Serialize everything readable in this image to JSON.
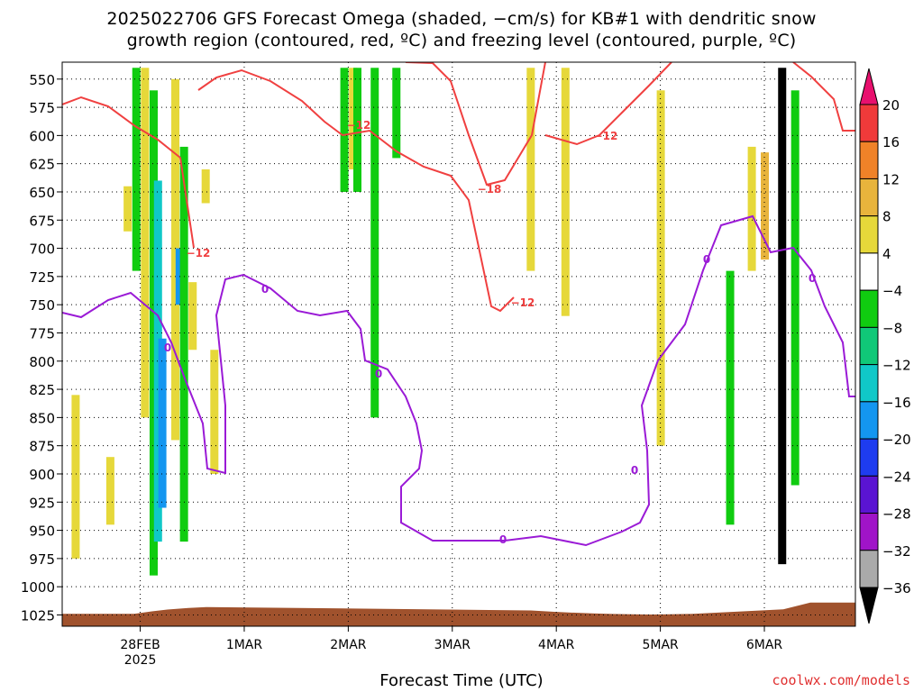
{
  "header": {
    "title_line1": "2025022706 GFS Forecast Omega (shaded, −cm/s) for KB#1 with dendritic snow",
    "title_line2": "growth region (contoured, red, ºC) and freezing level (contoured, purple, ºC)"
  },
  "footer": {
    "xlabel": "Forecast Time (UTC)",
    "credit": "coolwx.com/models"
  },
  "chart_data": {
    "type": "time-height cross section",
    "y_axis": {
      "quantity": "pressure (hPa)",
      "inverted": true,
      "range": [
        1035,
        535
      ],
      "tick_labels": [
        "550",
        "575",
        "600",
        "625",
        "650",
        "675",
        "700",
        "725",
        "750",
        "775",
        "800",
        "825",
        "850",
        "875",
        "900",
        "925",
        "950",
        "975",
        "1000",
        "1025"
      ]
    },
    "x_axis": {
      "range": [
        "2025-02-27T06:00Z",
        "2025-03-06T21:00Z"
      ],
      "ticks": [
        {
          "t": "2025-02-28T00:00Z",
          "label": "28FEB",
          "sublabel": "2025"
        },
        {
          "t": "2025-03-01T00:00Z",
          "label": "1MAR"
        },
        {
          "t": "2025-03-02T00:00Z",
          "label": "2MAR"
        },
        {
          "t": "2025-03-03T00:00Z",
          "label": "3MAR"
        },
        {
          "t": "2025-03-04T00:00Z",
          "label": "4MAR"
        },
        {
          "t": "2025-03-05T00:00Z",
          "label": "5MAR"
        },
        {
          "t": "2025-03-06T00:00Z",
          "label": "6MAR"
        }
      ]
    },
    "grid": "dotted",
    "colorbar": {
      "units": "−cm/s",
      "labels": [
        "20",
        "16",
        "12",
        "8",
        "4",
        "−4",
        "−8",
        "−12",
        "−16",
        "−20",
        "−24",
        "−28",
        "−32",
        "−36"
      ],
      "bins": [
        {
          "range": [
            20,
            null
          ],
          "color": "#e8106e"
        },
        {
          "range": [
            16,
            20
          ],
          "color": "#f03a3a"
        },
        {
          "range": [
            12,
            16
          ],
          "color": "#f08228"
        },
        {
          "range": [
            8,
            12
          ],
          "color": "#e8b43c"
        },
        {
          "range": [
            4,
            8
          ],
          "color": "#e6d83a"
        },
        {
          "range": [
            -4,
            4
          ],
          "color": "#ffffff"
        },
        {
          "range": [
            -8,
            -4
          ],
          "color": "#10cc10"
        },
        {
          "range": [
            -12,
            -8
          ],
          "color": "#10c878"
        },
        {
          "range": [
            -16,
            -12
          ],
          "color": "#10c8c8"
        },
        {
          "range": [
            -20,
            -16
          ],
          "color": "#1496f0"
        },
        {
          "range": [
            -24,
            -20
          ],
          "color": "#1e3cf0"
        },
        {
          "range": [
            -28,
            -24
          ],
          "color": "#5a14d2"
        },
        {
          "range": [
            -32,
            -28
          ],
          "color": "#a014c8"
        },
        {
          "range": [
            -36,
            -32
          ],
          "color": "#aaaaaa"
        },
        {
          "range": [
            null,
            -36
          ],
          "color": "#000000"
        }
      ]
    },
    "contours": [
      {
        "level": -12,
        "color": "#f04040",
        "labels": [
          "−12",
          "−12",
          "−12",
          "−12"
        ]
      },
      {
        "level": -18,
        "color": "#f04040",
        "labels": [
          "−18"
        ]
      },
      {
        "level": 0,
        "color": "#9a1ad6",
        "labels": [
          "0",
          "0",
          "0",
          "0",
          "0",
          "0",
          "0"
        ]
      }
    ],
    "terrain": {
      "color": "#a0522d",
      "surface_pressure_range_hPa": [
        1024,
        1014
      ]
    },
    "omega_shading": [
      {
        "time": "2025-02-27T09:00Z",
        "p_top": 830,
        "p_bottom": 975,
        "value": 5
      },
      {
        "time": "2025-02-27T17:00Z",
        "p_top": 885,
        "p_bottom": 945,
        "value": 5
      },
      {
        "time": "2025-02-27T21:00Z",
        "p_top": 645,
        "p_bottom": 685,
        "value": 5
      },
      {
        "time": "2025-02-27T23:00Z",
        "p_top": 540,
        "p_bottom": 720,
        "value": -6
      },
      {
        "time": "2025-02-28T01:00Z",
        "p_top": 540,
        "p_bottom": 850,
        "value": 5
      },
      {
        "time": "2025-02-28T03:00Z",
        "p_top": 560,
        "p_bottom": 990,
        "value": -6
      },
      {
        "time": "2025-02-28T04:00Z",
        "p_top": 640,
        "p_bottom": 960,
        "value": -14
      },
      {
        "time": "2025-02-28T05:00Z",
        "p_top": 780,
        "p_bottom": 930,
        "value": -20
      },
      {
        "time": "2025-02-28T08:00Z",
        "p_top": 550,
        "p_bottom": 870,
        "value": 5
      },
      {
        "time": "2025-02-28T09:00Z",
        "p_top": 700,
        "p_bottom": 750,
        "value": -20
      },
      {
        "time": "2025-02-28T10:00Z",
        "p_top": 610,
        "p_bottom": 960,
        "value": -6
      },
      {
        "time": "2025-02-28T12:00Z",
        "p_top": 730,
        "p_bottom": 790,
        "value": 5
      },
      {
        "time": "2025-02-28T15:00Z",
        "p_top": 630,
        "p_bottom": 660,
        "value": 5
      },
      {
        "time": "2025-02-28T17:00Z",
        "p_top": 790,
        "p_bottom": 900,
        "value": 5
      },
      {
        "time": "2025-03-01T23:00Z",
        "p_top": 540,
        "p_bottom": 650,
        "value": -6
      },
      {
        "time": "2025-03-02T01:00Z",
        "p_top": 540,
        "p_bottom": 630,
        "value": 5
      },
      {
        "time": "2025-03-02T02:00Z",
        "p_top": 540,
        "p_bottom": 650,
        "value": -6
      },
      {
        "time": "2025-03-02T06:00Z",
        "p_top": 540,
        "p_bottom": 850,
        "value": -6
      },
      {
        "time": "2025-03-02T11:00Z",
        "p_top": 540,
        "p_bottom": 620,
        "value": -6
      },
      {
        "time": "2025-03-03T18:00Z",
        "p_top": 540,
        "p_bottom": 720,
        "value": 5
      },
      {
        "time": "2025-03-04T02:00Z",
        "p_top": 540,
        "p_bottom": 760,
        "value": 5
      },
      {
        "time": "2025-03-05T00:00Z",
        "p_top": 560,
        "p_bottom": 875,
        "value": 5
      },
      {
        "time": "2025-03-05T16:00Z",
        "p_top": 720,
        "p_bottom": 945,
        "value": -6
      },
      {
        "time": "2025-03-05T21:00Z",
        "p_top": 610,
        "p_bottom": 720,
        "value": 5
      },
      {
        "time": "2025-03-06T00:00Z",
        "p_top": 615,
        "p_bottom": 710,
        "value": 10
      },
      {
        "time": "2025-03-06T04:00Z",
        "p_top": 540,
        "p_bottom": 980,
        "value": -40
      },
      {
        "time": "2025-03-06T07:00Z",
        "p_top": 560,
        "p_bottom": 910,
        "value": -6
      }
    ]
  }
}
